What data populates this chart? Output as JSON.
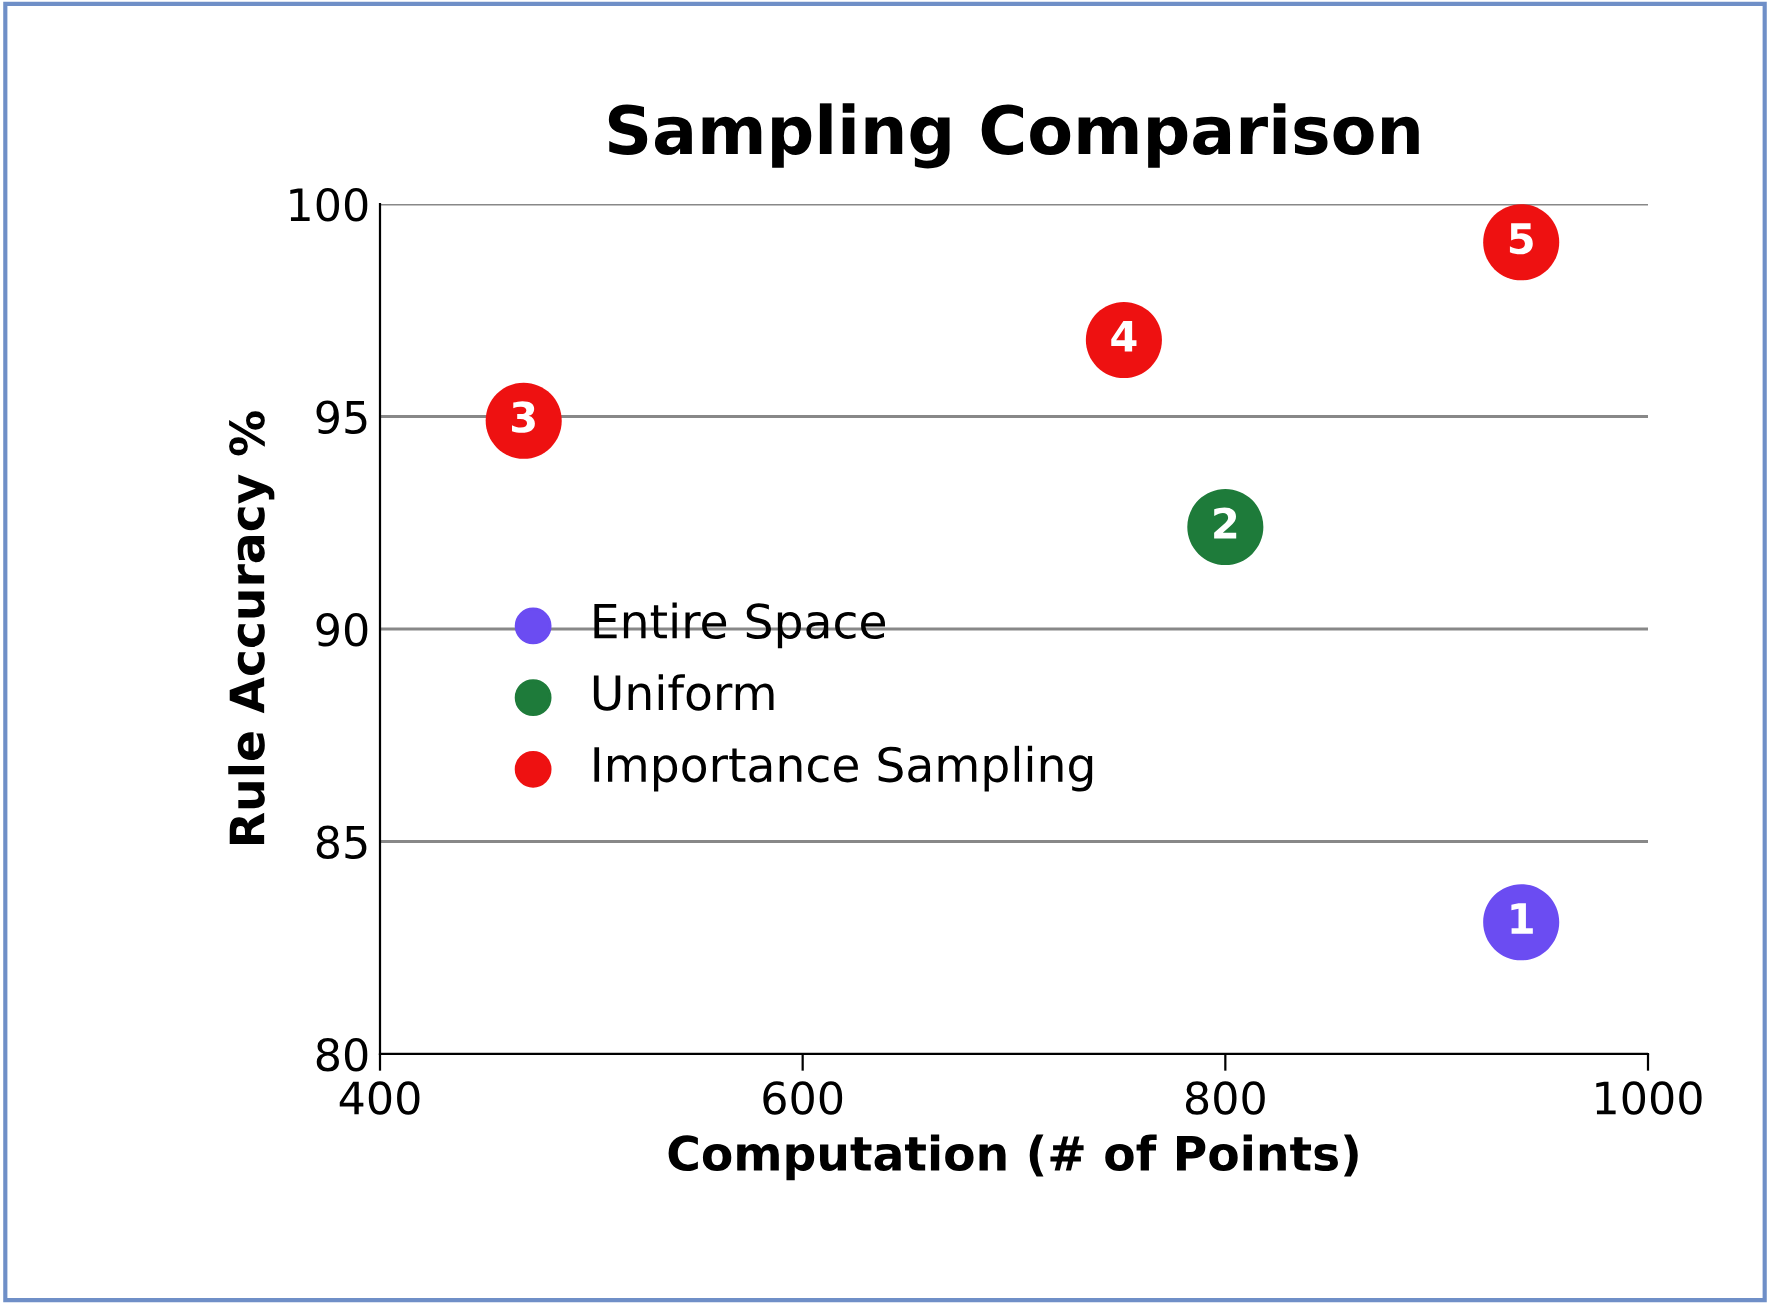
{
  "chart_data": {
    "type": "scatter",
    "title": "Sampling Comparison",
    "xlabel": "Computation (# of Points)",
    "ylabel": "Rule Accuracy %",
    "series": [
      {
        "name": "Entire Space",
        "color": "#6b4cf2",
        "x": [
          940
        ],
        "values": [
          83.1
        ]
      },
      {
        "name": "Uniform",
        "color": "#1e7b3a",
        "x": [
          800
        ],
        "values": [
          92.4
        ]
      },
      {
        "name": "Importance Sampling",
        "color": "#ee1111",
        "x": [
          468,
          752,
          940
        ],
        "values": [
          94.9,
          96.8,
          99.1
        ]
      }
    ],
    "annotations": [
      {
        "text": "1",
        "x": 940,
        "y": 83.1
      },
      {
        "text": "2",
        "x": 800,
        "y": 92.4
      },
      {
        "text": "3",
        "x": 468,
        "y": 94.9
      },
      {
        "text": "4",
        "x": 752,
        "y": 96.8
      },
      {
        "text": "5",
        "x": 940,
        "y": 99.1
      }
    ],
    "xlim": [
      400,
      1000
    ],
    "xticks": [
      400,
      600,
      800,
      1000
    ],
    "ylim": [
      80,
      100
    ],
    "yticks": [
      80,
      85,
      90,
      95,
      100
    ],
    "grid": "y",
    "legend": "left",
    "marker": "circle"
  }
}
